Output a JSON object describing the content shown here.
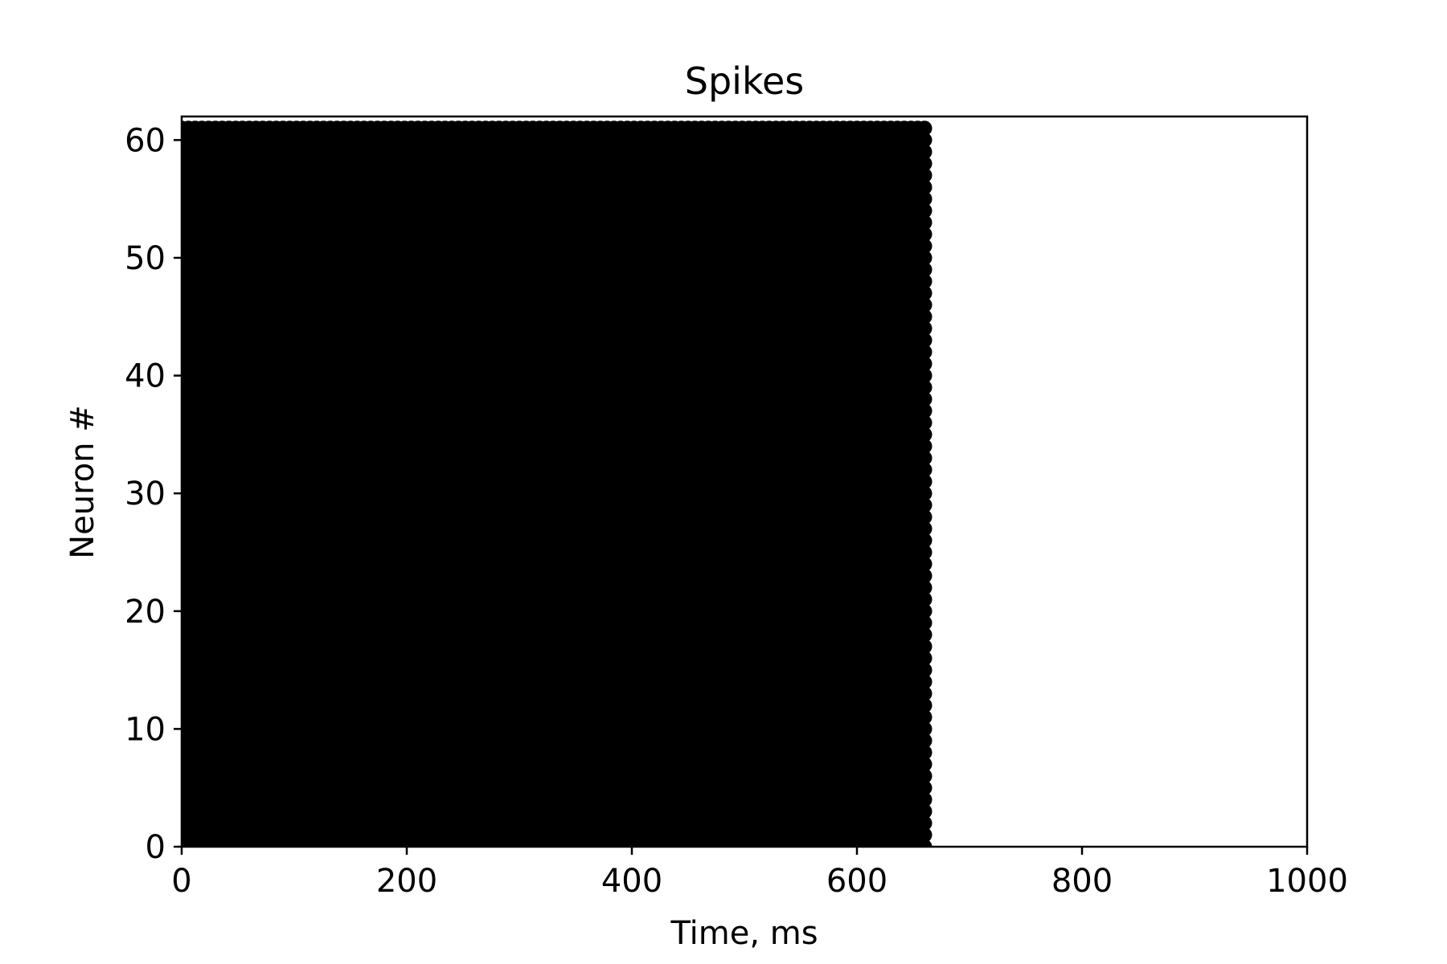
{
  "chart_data": {
    "type": "scatter",
    "title": "Spikes",
    "xlabel": "Time, ms",
    "ylabel": "Neuron #",
    "xlim": [
      0,
      1000
    ],
    "ylim": [
      0,
      62
    ],
    "xticks": [
      0,
      200,
      400,
      600,
      800,
      1000
    ],
    "yticks": [
      0,
      10,
      20,
      30,
      40,
      50,
      60
    ],
    "grid": false,
    "legend": "none",
    "marker_color": "#000000",
    "series": [
      {
        "neurons": [
          0,
          61
        ],
        "time_range_ms": [
          0,
          662
        ],
        "description_values": {
          "active_window_end_ms": 662,
          "neuron_count": 62
        }
      }
    ]
  }
}
